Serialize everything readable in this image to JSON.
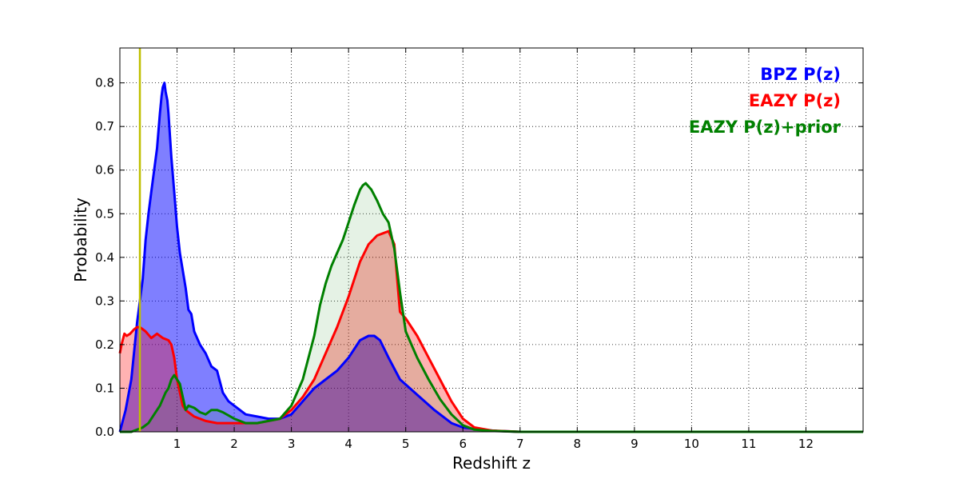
{
  "chart_data": {
    "type": "area",
    "xlabel": "Redshift z",
    "ylabel": "Probability",
    "xlim": [
      0,
      13
    ],
    "ylim": [
      0,
      0.88
    ],
    "xticks": [
      1,
      2,
      3,
      4,
      5,
      6,
      7,
      8,
      9,
      10,
      11,
      12
    ],
    "yticks": [
      0.0,
      0.1,
      0.2,
      0.3,
      0.4,
      0.5,
      0.6,
      0.7,
      0.8
    ],
    "grid": true,
    "legend_position": "top-right",
    "vline": {
      "x": 0.35,
      "color": "#bfbf00"
    },
    "series": [
      {
        "name": "BPZ P(z)",
        "color": "#0000ff",
        "fill": "rgba(0,0,255,0.5)",
        "x": [
          0.0,
          0.1,
          0.2,
          0.3,
          0.4,
          0.45,
          0.5,
          0.55,
          0.6,
          0.65,
          0.7,
          0.73,
          0.75,
          0.78,
          0.8,
          0.83,
          0.85,
          0.9,
          0.95,
          1.0,
          1.05,
          1.1,
          1.15,
          1.2,
          1.25,
          1.3,
          1.4,
          1.5,
          1.6,
          1.7,
          1.8,
          1.9,
          2.0,
          2.2,
          2.4,
          2.6,
          2.8,
          3.0,
          3.2,
          3.4,
          3.6,
          3.8,
          4.0,
          4.2,
          4.35,
          4.45,
          4.55,
          4.7,
          4.9,
          5.2,
          5.5,
          5.8,
          6.0,
          6.3,
          6.6,
          7.0,
          8.0,
          13.0
        ],
        "y": [
          0.0,
          0.05,
          0.12,
          0.25,
          0.35,
          0.44,
          0.5,
          0.55,
          0.6,
          0.65,
          0.73,
          0.77,
          0.79,
          0.8,
          0.78,
          0.76,
          0.73,
          0.63,
          0.55,
          0.47,
          0.41,
          0.37,
          0.33,
          0.28,
          0.27,
          0.23,
          0.2,
          0.18,
          0.15,
          0.14,
          0.09,
          0.07,
          0.06,
          0.04,
          0.035,
          0.03,
          0.03,
          0.04,
          0.07,
          0.1,
          0.12,
          0.14,
          0.17,
          0.21,
          0.22,
          0.22,
          0.21,
          0.17,
          0.12,
          0.085,
          0.05,
          0.02,
          0.01,
          0.005,
          0.002,
          0.0,
          0.0,
          0.0
        ]
      },
      {
        "name": "EAZY P(z)",
        "color": "#ff0000",
        "fill": "rgba(255,0,0,0.3)",
        "x": [
          0.0,
          0.03,
          0.08,
          0.12,
          0.18,
          0.25,
          0.3,
          0.35,
          0.45,
          0.55,
          0.6,
          0.65,
          0.75,
          0.85,
          0.9,
          0.95,
          1.0,
          1.05,
          1.1,
          1.15,
          1.2,
          1.3,
          1.5,
          1.7,
          1.9,
          2.1,
          2.4,
          2.6,
          2.8,
          3.0,
          3.2,
          3.4,
          3.6,
          3.8,
          4.0,
          4.2,
          4.35,
          4.5,
          4.6,
          4.7,
          4.8,
          4.85,
          4.9,
          5.0,
          5.2,
          5.4,
          5.6,
          5.8,
          6.0,
          6.2,
          6.5,
          7.0,
          8.0,
          13.0
        ],
        "y": [
          0.18,
          0.2,
          0.225,
          0.22,
          0.225,
          0.235,
          0.24,
          0.24,
          0.23,
          0.215,
          0.22,
          0.225,
          0.215,
          0.21,
          0.2,
          0.17,
          0.12,
          0.09,
          0.06,
          0.05,
          0.045,
          0.035,
          0.025,
          0.02,
          0.02,
          0.02,
          0.02,
          0.025,
          0.03,
          0.05,
          0.08,
          0.12,
          0.18,
          0.24,
          0.31,
          0.39,
          0.43,
          0.45,
          0.455,
          0.46,
          0.43,
          0.35,
          0.275,
          0.26,
          0.22,
          0.17,
          0.12,
          0.07,
          0.03,
          0.01,
          0.003,
          0.0,
          0.0,
          0.0
        ]
      },
      {
        "name": "EAZY P(z)+prior",
        "color": "#008000",
        "fill": "rgba(0,128,0,0.1)",
        "x": [
          0.0,
          0.2,
          0.3,
          0.4,
          0.5,
          0.6,
          0.7,
          0.8,
          0.85,
          0.9,
          0.95,
          1.0,
          1.05,
          1.1,
          1.15,
          1.2,
          1.3,
          1.4,
          1.5,
          1.6,
          1.7,
          1.8,
          2.0,
          2.2,
          2.4,
          2.6,
          2.8,
          3.0,
          3.2,
          3.4,
          3.5,
          3.6,
          3.7,
          3.8,
          3.9,
          4.0,
          4.1,
          4.2,
          4.25,
          4.3,
          4.4,
          4.5,
          4.6,
          4.7,
          4.8,
          4.9,
          5.0,
          5.2,
          5.4,
          5.6,
          5.8,
          6.0,
          6.2,
          6.5,
          7.0,
          8.0,
          13.0
        ],
        "y": [
          0.0,
          0.0,
          0.005,
          0.01,
          0.02,
          0.04,
          0.06,
          0.09,
          0.1,
          0.12,
          0.13,
          0.12,
          0.11,
          0.08,
          0.05,
          0.06,
          0.055,
          0.045,
          0.04,
          0.05,
          0.05,
          0.045,
          0.03,
          0.02,
          0.02,
          0.025,
          0.03,
          0.06,
          0.12,
          0.22,
          0.29,
          0.34,
          0.38,
          0.41,
          0.44,
          0.48,
          0.52,
          0.555,
          0.565,
          0.57,
          0.555,
          0.53,
          0.5,
          0.48,
          0.42,
          0.32,
          0.23,
          0.17,
          0.12,
          0.075,
          0.04,
          0.015,
          0.005,
          0.002,
          0.0,
          0.0,
          0.0
        ]
      }
    ]
  }
}
